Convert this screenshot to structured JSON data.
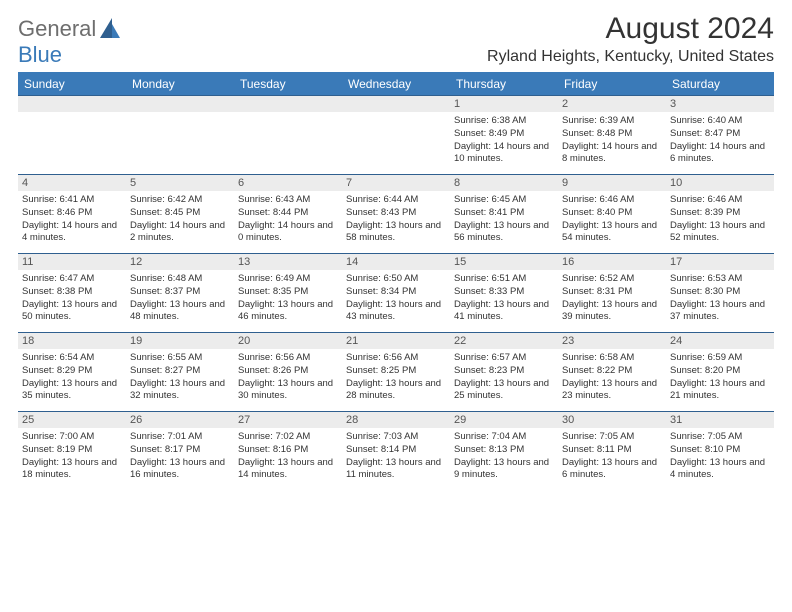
{
  "logo": {
    "part1": "General",
    "part2": "Blue"
  },
  "title": "August 2024",
  "location": "Ryland Heights, Kentucky, United States",
  "colors": {
    "header_bg": "#3a7ab8",
    "header_text": "#ffffff",
    "daynum_bg": "#ececec",
    "rule": "#2f5f8f"
  },
  "day_headers": [
    "Sunday",
    "Monday",
    "Tuesday",
    "Wednesday",
    "Thursday",
    "Friday",
    "Saturday"
  ],
  "weeks": [
    [
      {
        "n": "",
        "sunrise": "",
        "sunset": "",
        "daylight": ""
      },
      {
        "n": "",
        "sunrise": "",
        "sunset": "",
        "daylight": ""
      },
      {
        "n": "",
        "sunrise": "",
        "sunset": "",
        "daylight": ""
      },
      {
        "n": "",
        "sunrise": "",
        "sunset": "",
        "daylight": ""
      },
      {
        "n": "1",
        "sunrise": "Sunrise: 6:38 AM",
        "sunset": "Sunset: 8:49 PM",
        "daylight": "Daylight: 14 hours and 10 minutes."
      },
      {
        "n": "2",
        "sunrise": "Sunrise: 6:39 AM",
        "sunset": "Sunset: 8:48 PM",
        "daylight": "Daylight: 14 hours and 8 minutes."
      },
      {
        "n": "3",
        "sunrise": "Sunrise: 6:40 AM",
        "sunset": "Sunset: 8:47 PM",
        "daylight": "Daylight: 14 hours and 6 minutes."
      }
    ],
    [
      {
        "n": "4",
        "sunrise": "Sunrise: 6:41 AM",
        "sunset": "Sunset: 8:46 PM",
        "daylight": "Daylight: 14 hours and 4 minutes."
      },
      {
        "n": "5",
        "sunrise": "Sunrise: 6:42 AM",
        "sunset": "Sunset: 8:45 PM",
        "daylight": "Daylight: 14 hours and 2 minutes."
      },
      {
        "n": "6",
        "sunrise": "Sunrise: 6:43 AM",
        "sunset": "Sunset: 8:44 PM",
        "daylight": "Daylight: 14 hours and 0 minutes."
      },
      {
        "n": "7",
        "sunrise": "Sunrise: 6:44 AM",
        "sunset": "Sunset: 8:43 PM",
        "daylight": "Daylight: 13 hours and 58 minutes."
      },
      {
        "n": "8",
        "sunrise": "Sunrise: 6:45 AM",
        "sunset": "Sunset: 8:41 PM",
        "daylight": "Daylight: 13 hours and 56 minutes."
      },
      {
        "n": "9",
        "sunrise": "Sunrise: 6:46 AM",
        "sunset": "Sunset: 8:40 PM",
        "daylight": "Daylight: 13 hours and 54 minutes."
      },
      {
        "n": "10",
        "sunrise": "Sunrise: 6:46 AM",
        "sunset": "Sunset: 8:39 PM",
        "daylight": "Daylight: 13 hours and 52 minutes."
      }
    ],
    [
      {
        "n": "11",
        "sunrise": "Sunrise: 6:47 AM",
        "sunset": "Sunset: 8:38 PM",
        "daylight": "Daylight: 13 hours and 50 minutes."
      },
      {
        "n": "12",
        "sunrise": "Sunrise: 6:48 AM",
        "sunset": "Sunset: 8:37 PM",
        "daylight": "Daylight: 13 hours and 48 minutes."
      },
      {
        "n": "13",
        "sunrise": "Sunrise: 6:49 AM",
        "sunset": "Sunset: 8:35 PM",
        "daylight": "Daylight: 13 hours and 46 minutes."
      },
      {
        "n": "14",
        "sunrise": "Sunrise: 6:50 AM",
        "sunset": "Sunset: 8:34 PM",
        "daylight": "Daylight: 13 hours and 43 minutes."
      },
      {
        "n": "15",
        "sunrise": "Sunrise: 6:51 AM",
        "sunset": "Sunset: 8:33 PM",
        "daylight": "Daylight: 13 hours and 41 minutes."
      },
      {
        "n": "16",
        "sunrise": "Sunrise: 6:52 AM",
        "sunset": "Sunset: 8:31 PM",
        "daylight": "Daylight: 13 hours and 39 minutes."
      },
      {
        "n": "17",
        "sunrise": "Sunrise: 6:53 AM",
        "sunset": "Sunset: 8:30 PM",
        "daylight": "Daylight: 13 hours and 37 minutes."
      }
    ],
    [
      {
        "n": "18",
        "sunrise": "Sunrise: 6:54 AM",
        "sunset": "Sunset: 8:29 PM",
        "daylight": "Daylight: 13 hours and 35 minutes."
      },
      {
        "n": "19",
        "sunrise": "Sunrise: 6:55 AM",
        "sunset": "Sunset: 8:27 PM",
        "daylight": "Daylight: 13 hours and 32 minutes."
      },
      {
        "n": "20",
        "sunrise": "Sunrise: 6:56 AM",
        "sunset": "Sunset: 8:26 PM",
        "daylight": "Daylight: 13 hours and 30 minutes."
      },
      {
        "n": "21",
        "sunrise": "Sunrise: 6:56 AM",
        "sunset": "Sunset: 8:25 PM",
        "daylight": "Daylight: 13 hours and 28 minutes."
      },
      {
        "n": "22",
        "sunrise": "Sunrise: 6:57 AM",
        "sunset": "Sunset: 8:23 PM",
        "daylight": "Daylight: 13 hours and 25 minutes."
      },
      {
        "n": "23",
        "sunrise": "Sunrise: 6:58 AM",
        "sunset": "Sunset: 8:22 PM",
        "daylight": "Daylight: 13 hours and 23 minutes."
      },
      {
        "n": "24",
        "sunrise": "Sunrise: 6:59 AM",
        "sunset": "Sunset: 8:20 PM",
        "daylight": "Daylight: 13 hours and 21 minutes."
      }
    ],
    [
      {
        "n": "25",
        "sunrise": "Sunrise: 7:00 AM",
        "sunset": "Sunset: 8:19 PM",
        "daylight": "Daylight: 13 hours and 18 minutes."
      },
      {
        "n": "26",
        "sunrise": "Sunrise: 7:01 AM",
        "sunset": "Sunset: 8:17 PM",
        "daylight": "Daylight: 13 hours and 16 minutes."
      },
      {
        "n": "27",
        "sunrise": "Sunrise: 7:02 AM",
        "sunset": "Sunset: 8:16 PM",
        "daylight": "Daylight: 13 hours and 14 minutes."
      },
      {
        "n": "28",
        "sunrise": "Sunrise: 7:03 AM",
        "sunset": "Sunset: 8:14 PM",
        "daylight": "Daylight: 13 hours and 11 minutes."
      },
      {
        "n": "29",
        "sunrise": "Sunrise: 7:04 AM",
        "sunset": "Sunset: 8:13 PM",
        "daylight": "Daylight: 13 hours and 9 minutes."
      },
      {
        "n": "30",
        "sunrise": "Sunrise: 7:05 AM",
        "sunset": "Sunset: 8:11 PM",
        "daylight": "Daylight: 13 hours and 6 minutes."
      },
      {
        "n": "31",
        "sunrise": "Sunrise: 7:05 AM",
        "sunset": "Sunset: 8:10 PM",
        "daylight": "Daylight: 13 hours and 4 minutes."
      }
    ]
  ]
}
